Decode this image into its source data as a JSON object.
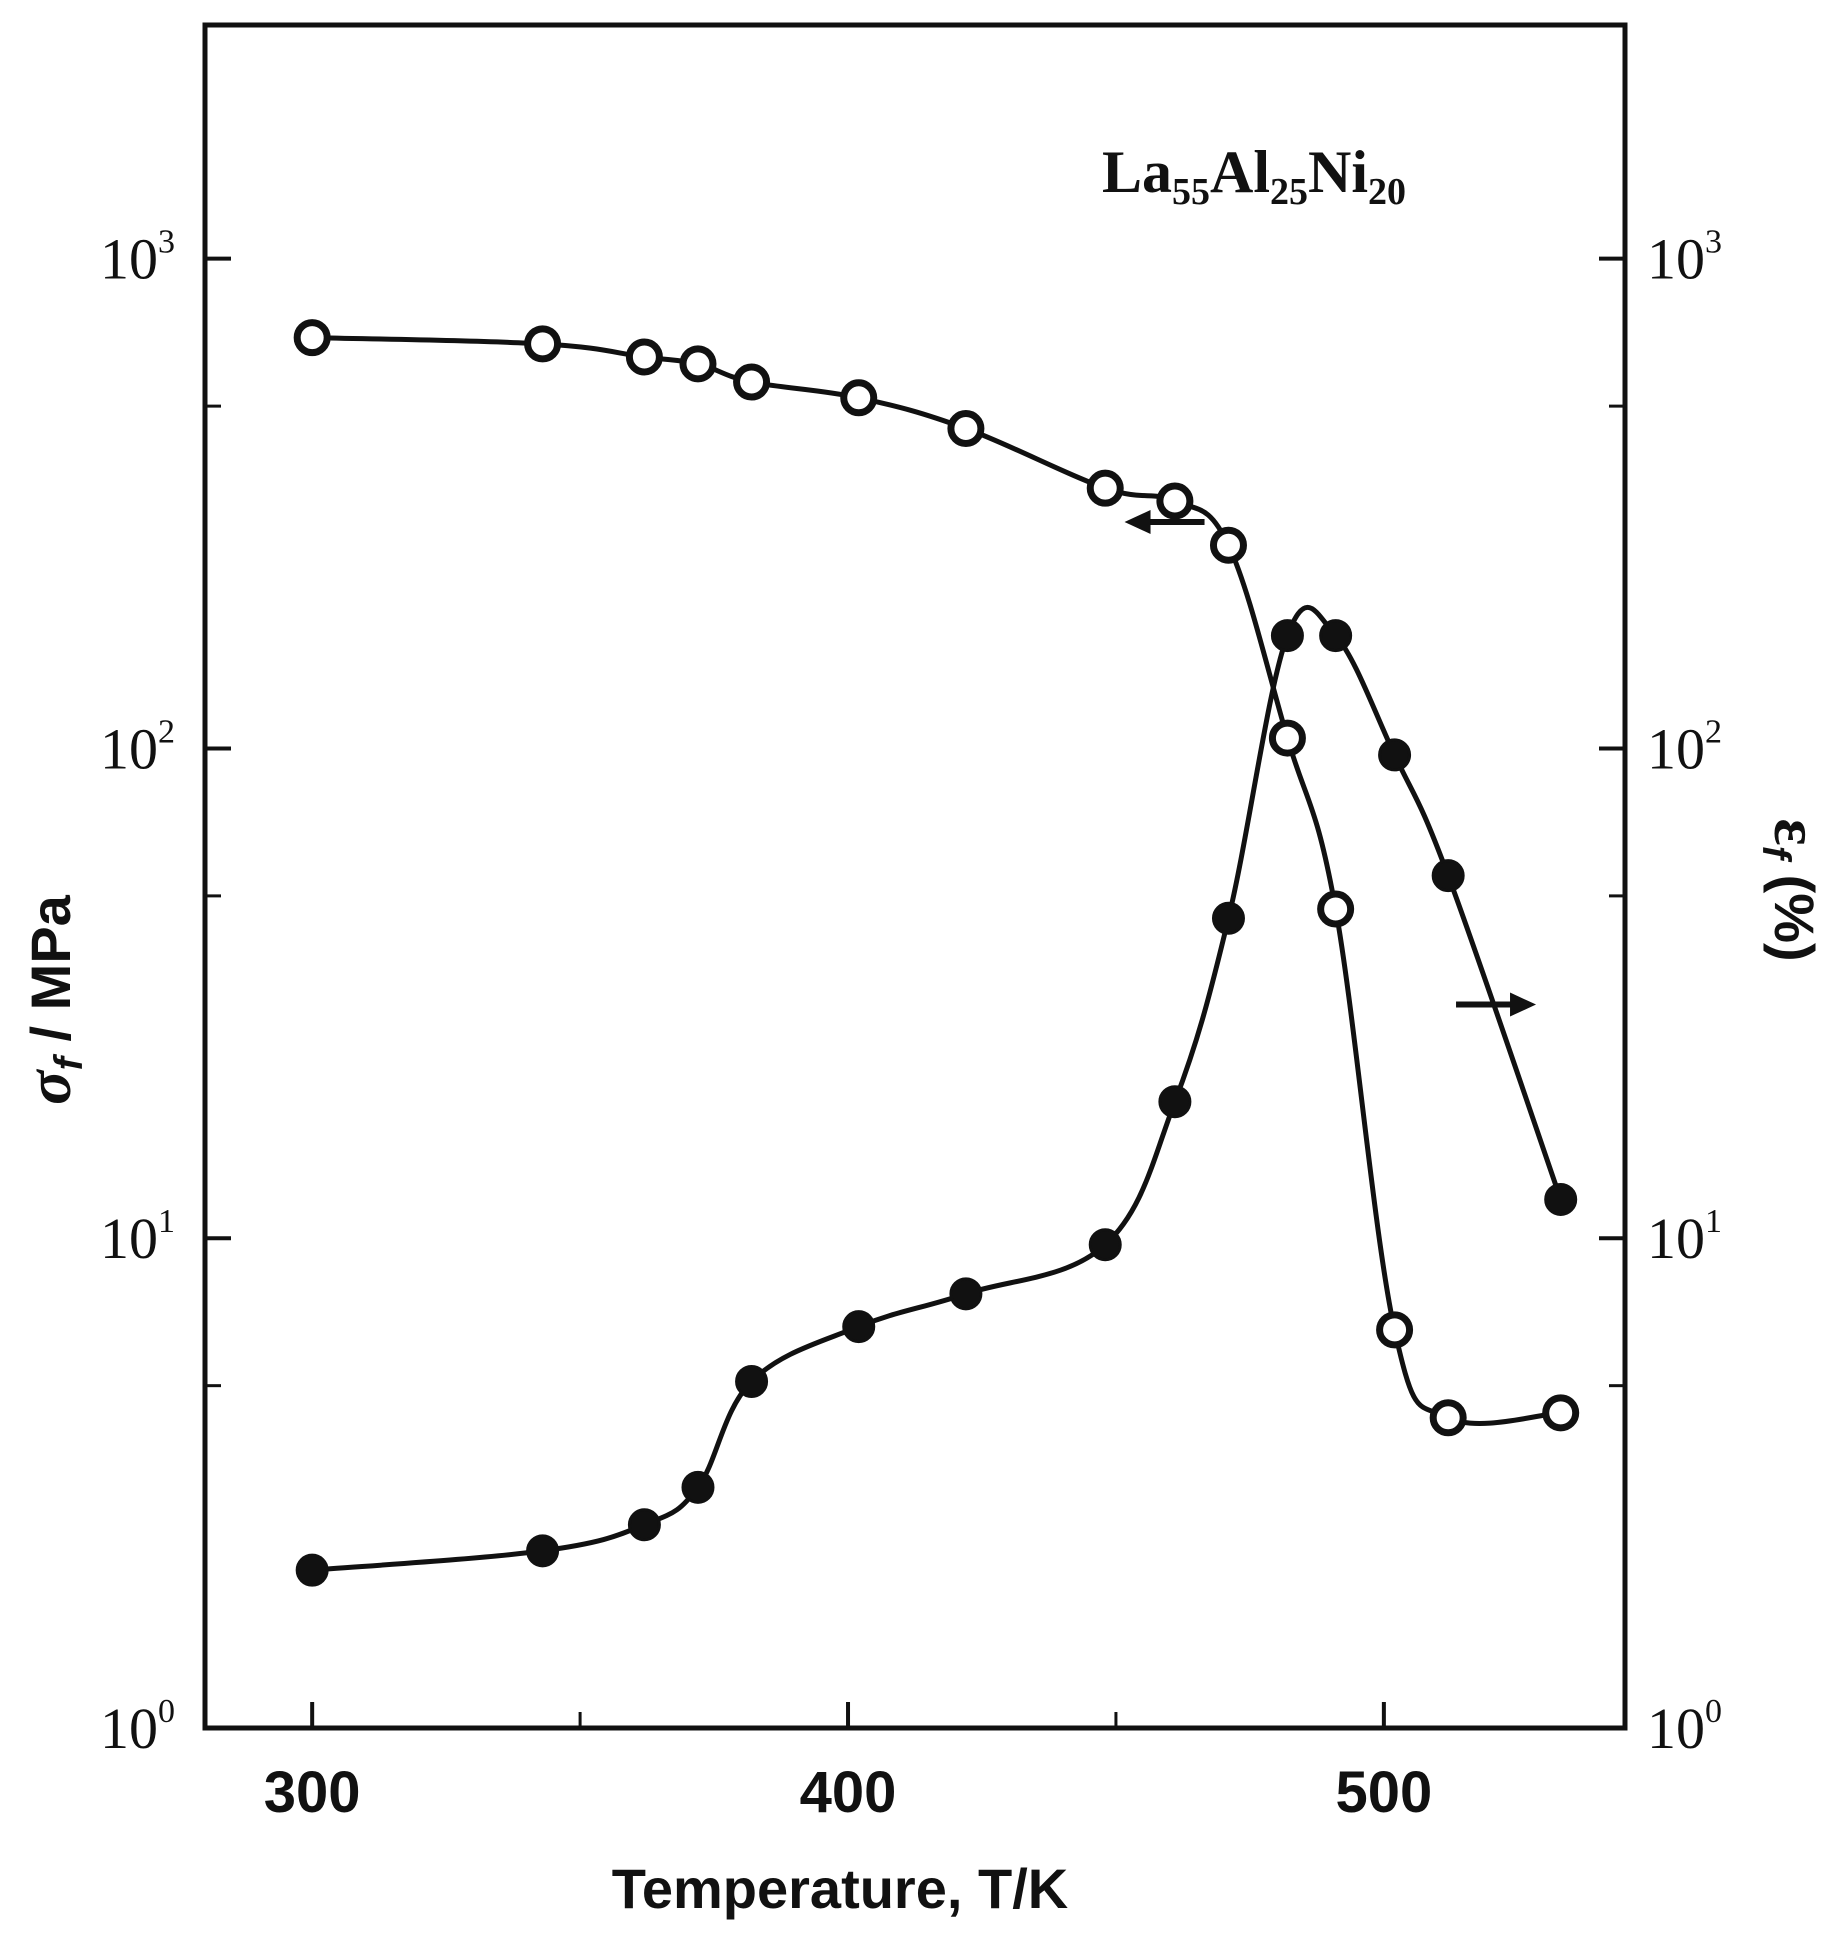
{
  "chart_data": {
    "type": "line",
    "title": "",
    "annotation": {
      "base": "La",
      "el1_sub": "55",
      "el2": "Al",
      "el2_sub": "25",
      "el3": "Ni",
      "el3_sub": "20"
    },
    "xlabel": "Temperature,  T/K",
    "ylabel_left": "σ_f / MPa",
    "ylabel_right": "ε_f (%)",
    "ylabel_left_parts": {
      "sym": "σ",
      "sub": "f",
      "rest": " / MPa"
    },
    "ylabel_right_parts": {
      "sym": "ε",
      "sub": "f",
      "rest": " (%)"
    },
    "xlim": [
      280,
      545
    ],
    "ylim": [
      1,
      3000
    ],
    "yscale": "log",
    "x_ticks": [
      300,
      400,
      500
    ],
    "x_tick_labels": [
      "300",
      "400",
      "500"
    ],
    "y_ticks": [
      1,
      10,
      100,
      1000
    ],
    "y_tick_labels_left": [
      {
        "base": "10",
        "exp": "0"
      },
      {
        "base": "10",
        "exp": "1"
      },
      {
        "base": "10",
        "exp": "2"
      },
      {
        "base": "10",
        "exp": "3"
      }
    ],
    "y_tick_labels_right": [
      {
        "base": "10",
        "exp": "0"
      },
      {
        "base": "10",
        "exp": "1"
      },
      {
        "base": "10",
        "exp": "2"
      },
      {
        "base": "10",
        "exp": "3"
      }
    ],
    "grid": false,
    "series": [
      {
        "axis": "left",
        "marker": "open-circle",
        "x": [
          300,
          343,
          362,
          372,
          382,
          402,
          422,
          448,
          461,
          471,
          482,
          491,
          502,
          512,
          533
        ],
        "y": [
          690,
          670,
          630,
          610,
          560,
          520,
          450,
          340,
          320,
          260,
          105,
          47,
          6.5,
          4.3,
          4.4
        ]
      },
      {
        "axis": "right",
        "marker": "filled-circle",
        "x": [
          300,
          343,
          362,
          372,
          382,
          402,
          422,
          448,
          461,
          471,
          482,
          491,
          502,
          512,
          533
        ],
        "y": [
          2.1,
          2.3,
          2.6,
          3.1,
          5.1,
          6.6,
          7.7,
          9.7,
          19,
          45,
          170,
          170,
          97,
          55,
          12
        ]
      }
    ],
    "arrows": [
      {
        "series": 0,
        "direction": "left",
        "x": 460,
        "y": 290
      },
      {
        "series": 1,
        "direction": "right",
        "x": 520,
        "y": 30
      }
    ]
  }
}
